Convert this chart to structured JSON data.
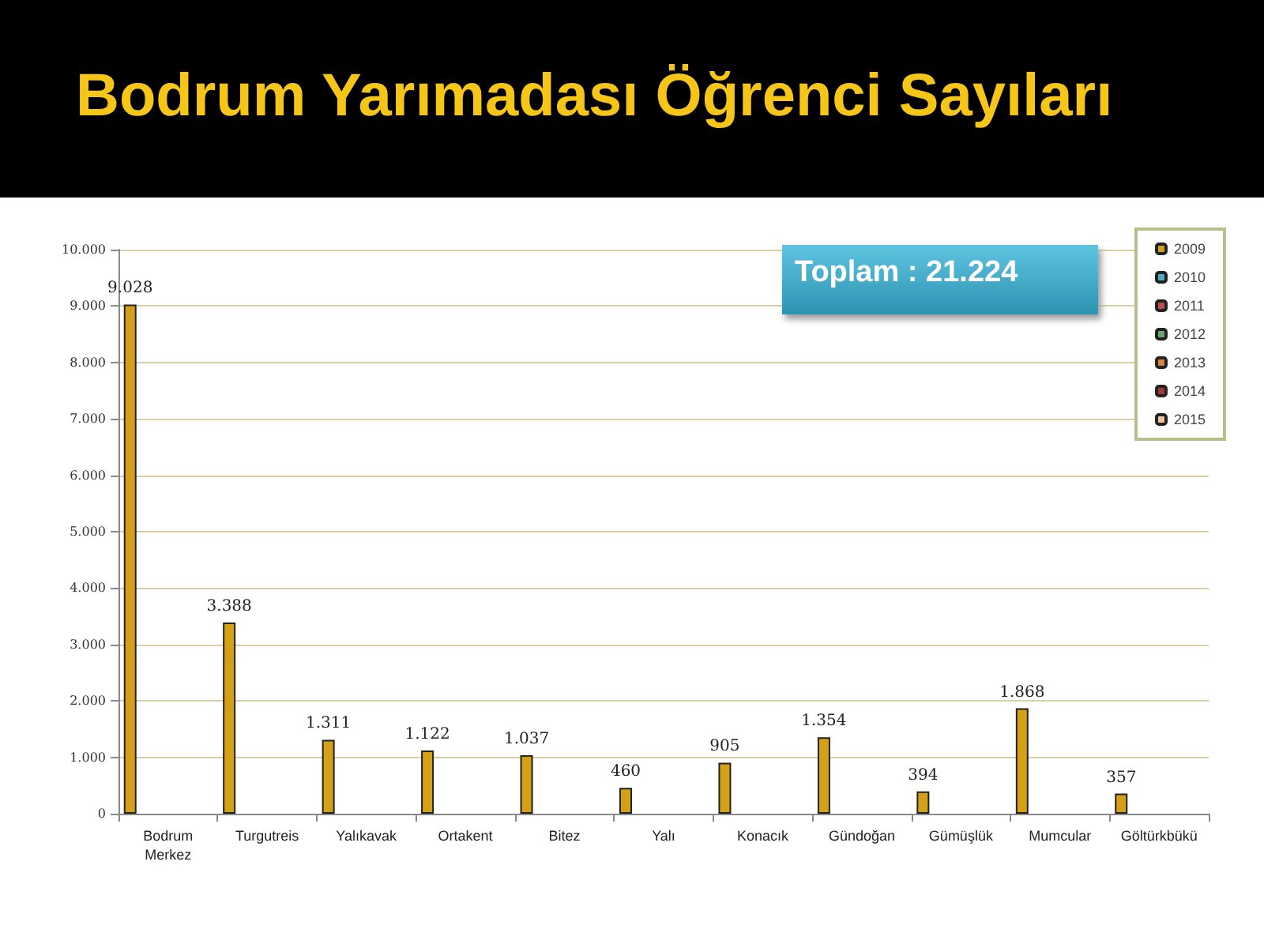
{
  "chart_data": {
    "type": "bar",
    "title": "Bodrum Yarımadası Öğrenci Sayıları",
    "categories": [
      "Bodrum Merkez",
      "Turgutreis",
      "Yalıkavak",
      "Ortakent",
      "Bitez",
      "Yalı",
      "Konacık",
      "Gündoğan",
      "Gümüşlük",
      "Mumcular",
      "Göltürkbükü"
    ],
    "series": [
      {
        "name": "2009",
        "color": "#d4a017",
        "values": [
          9028,
          3388,
          1311,
          1122,
          1037,
          460,
          905,
          1354,
          394,
          1868,
          357
        ],
        "value_labels": [
          "9.028",
          "3.388",
          "1.311",
          "1.122",
          "1.037",
          "460",
          "905",
          "1.354",
          "394",
          "1.868",
          "357"
        ]
      },
      {
        "name": "2010",
        "color": "#4bacc6",
        "values": [
          null,
          null,
          null,
          null,
          null,
          null,
          null,
          null,
          null,
          null,
          null
        ]
      },
      {
        "name": "2011",
        "color": "#c0504d",
        "values": [
          null,
          null,
          null,
          null,
          null,
          null,
          null,
          null,
          null,
          null,
          null
        ]
      },
      {
        "name": "2012",
        "color": "#6aa870",
        "values": [
          null,
          null,
          null,
          null,
          null,
          null,
          null,
          null,
          null,
          null,
          null
        ]
      },
      {
        "name": "2013",
        "color": "#d9824a",
        "values": [
          null,
          null,
          null,
          null,
          null,
          null,
          null,
          null,
          null,
          null,
          null
        ]
      },
      {
        "name": "2014",
        "color": "#a0373a",
        "values": [
          null,
          null,
          null,
          null,
          null,
          null,
          null,
          null,
          null,
          null,
          null
        ]
      },
      {
        "name": "2015",
        "color": "#f2c49b",
        "values": [
          null,
          null,
          null,
          null,
          null,
          null,
          null,
          null,
          null,
          null,
          null
        ]
      }
    ],
    "ylim": [
      0,
      10000
    ],
    "yticks": [
      {
        "value": 0,
        "label": "0"
      },
      {
        "value": 1000,
        "label": "1.000"
      },
      {
        "value": 2000,
        "label": "2.000"
      },
      {
        "value": 3000,
        "label": "3.000"
      },
      {
        "value": 4000,
        "label": "4.000"
      },
      {
        "value": 5000,
        "label": "5.000"
      },
      {
        "value": 6000,
        "label": "6.000"
      },
      {
        "value": 7000,
        "label": "7.000"
      },
      {
        "value": 8000,
        "label": "8.000"
      },
      {
        "value": 9000,
        "label": "9.000"
      },
      {
        "value": 10000,
        "label": "10.000"
      }
    ],
    "annotations": [
      "Toplam : 21.224"
    ],
    "grid": "y",
    "legend": "top right"
  }
}
